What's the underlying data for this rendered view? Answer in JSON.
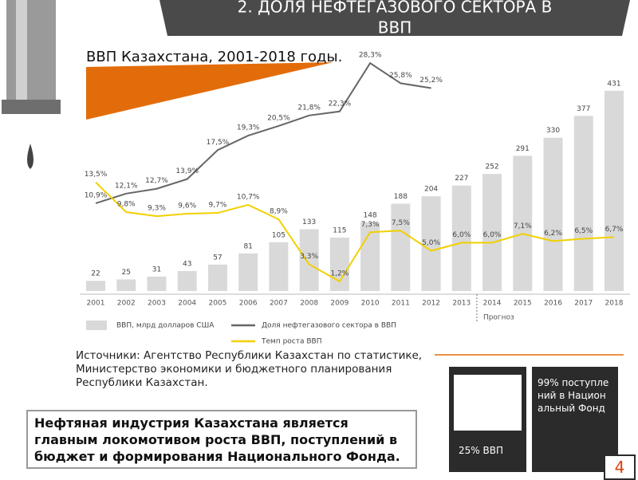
{
  "header": {
    "title_lines": [
      "2. ДОЛЯ НЕФТЕГАЗОВОГО СЕКТОРА В",
      "ВВП"
    ]
  },
  "chart_data": {
    "type": "bar",
    "title": "ВВП Казахстана, 2001-2018 годы.",
    "categories": [
      "2001",
      "2002",
      "2003",
      "2004",
      "2005",
      "2006",
      "2007",
      "2008",
      "2009",
      "2010",
      "2011",
      "2012",
      "2013",
      "2014",
      "2015",
      "2016",
      "2017",
      "2018"
    ],
    "ylim": [
      0,
      520
    ],
    "y2lim": [
      0,
      30
    ],
    "forecast_label": "Прогноз",
    "series": [
      {
        "name": "ВВП, млрд долларов США",
        "type": "bar",
        "color": "#d9d9d9",
        "values": [
          22,
          25,
          31,
          43,
          57,
          81,
          105,
          133,
          115,
          148,
          188,
          204,
          227,
          252,
          291,
          330,
          377,
          431
        ]
      },
      {
        "name": "Доля нефтегазового сектора в ВВП",
        "type": "line",
        "axis": "y2",
        "color": "#666666",
        "values": [
          10.9,
          12.1,
          12.7,
          13.9,
          17.5,
          19.3,
          20.5,
          21.8,
          22.3,
          28.3,
          25.8,
          25.2,
          null,
          null,
          null,
          null,
          null,
          null
        ],
        "value_labels": [
          "10,9%",
          "12,1%",
          "12,7%",
          "13,9%",
          "17,5%",
          "19,3%",
          "20,5%",
          "21,8%",
          "22,3%",
          "28,3%",
          "25,8%",
          "25,2%",
          null,
          null,
          null,
          null,
          null,
          null
        ]
      },
      {
        "name": "Темп роста ВВП",
        "type": "line",
        "axis": "y2",
        "color": "#f2d000",
        "values": [
          13.5,
          9.8,
          9.3,
          9.6,
          9.7,
          10.7,
          8.9,
          3.3,
          1.2,
          7.3,
          7.5,
          5.0,
          6.0,
          6.0,
          7.1,
          6.2,
          6.5,
          6.7
        ],
        "value_labels": [
          "13,5%",
          "9,8%",
          "9,3%",
          "9,6%",
          "9,7%",
          "10,7%",
          "8,9%",
          "3,3%",
          "1,2%",
          "7,3%",
          "7,5%",
          "5,0%",
          "6,0%",
          "6,0%",
          "7,1%",
          "6,2%",
          "6,5%",
          "6,7%"
        ]
      }
    ]
  },
  "sources": [
    "Источники: Агентство Республики Казахстан по статистике,",
    "Министерство экономики и бюджетного планирования",
    "Республики Казахстан."
  ],
  "highlight": [
    "Нефтяная индустрия Казахстана является",
    "главным локомотивом роста ВВП, поступлений в",
    "бюджет и формирования Национального Фонда."
  ],
  "callouts": [
    "25% ВВП",
    "99% поступлений в Национальный Фонд"
  ],
  "page_number": "4"
}
